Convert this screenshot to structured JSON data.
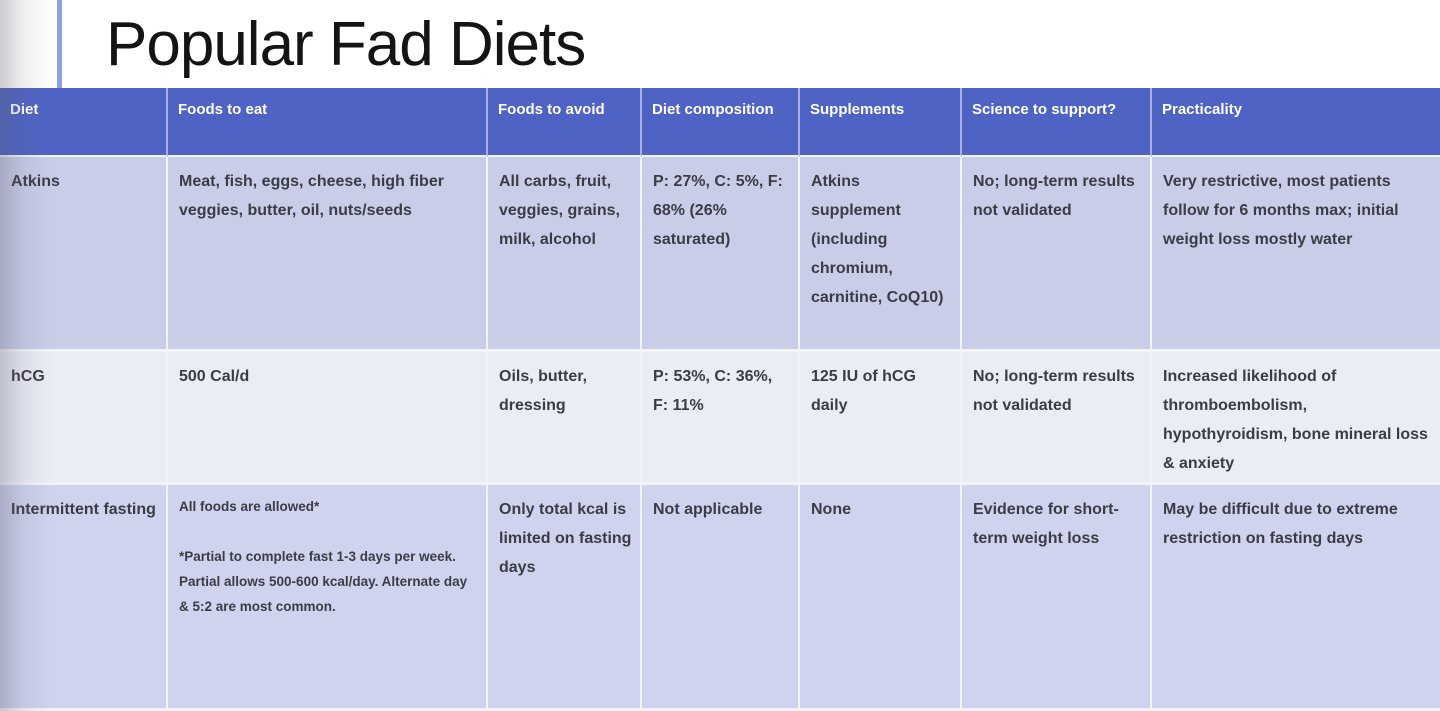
{
  "slide": {
    "title": "Popular Fad Diets",
    "accent_color": "#8da0da",
    "header_bg": "#4e63c4",
    "row_bg_dark": "#cdd1eb",
    "row_bg_light": "#eaecf6"
  },
  "table": {
    "columns": [
      {
        "label": "Diet"
      },
      {
        "label": "Foods to eat"
      },
      {
        "label": "Foods to avoid"
      },
      {
        "label": "Diet composition"
      },
      {
        "label": "Supplements"
      },
      {
        "label": "Science to support?"
      },
      {
        "label": "Practicality"
      }
    ],
    "rows": [
      {
        "cells": [
          "Atkins",
          "Meat, fish, eggs, cheese, high fiber veggies, butter, oil, nuts/seeds",
          "All carbs, fruit, veggies, grains, milk, alcohol",
          "P: 27%, C: 5%, F: 68% (26% saturated)",
          "Atkins supplement (including chromium, carnitine, CoQ10)",
          "No; long-term results not validated",
          "Very restrictive, most patients follow for 6 months max; initial weight loss mostly water"
        ]
      },
      {
        "cells": [
          "hCG",
          "500 Cal/d",
          "Oils, butter, dressing",
          "P: 53%, C: 36%, F: 11%",
          "125 IU of hCG daily",
          "No; long-term results not validated",
          "Increased likelihood of thromboembolism, hypothyroidism, bone mineral loss & anxiety"
        ]
      },
      {
        "cells": [
          "Intermittent fasting",
          "All foods are allowed*\n\n*Partial to complete fast 1-3 days per week. Partial allows 500-600 kcal/day. Alternate day & 5:2 are most common.",
          "Only total kcal is limited on fasting days",
          "Not applicable",
          "None",
          "Evidence for short-term weight loss",
          "May be difficult due to extreme restriction on fasting days"
        ]
      }
    ]
  }
}
